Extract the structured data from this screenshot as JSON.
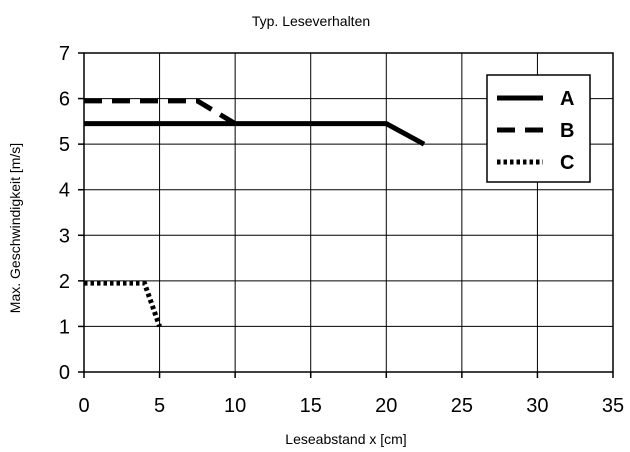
{
  "chart_data": {
    "type": "line",
    "title": "Typ. Leseverhalten",
    "xlabel": "Leseabstand x [cm]",
    "ylabel": "Max. Geschwindigkeit [m/s]",
    "xlim": [
      0,
      35
    ],
    "ylim": [
      0,
      7
    ],
    "xticks": [
      0,
      5,
      10,
      15,
      20,
      25,
      30,
      35
    ],
    "yticks": [
      0,
      1,
      2,
      3,
      4,
      5,
      6,
      7
    ],
    "grid": true,
    "legend_position": "top-right",
    "series": [
      {
        "name": "A",
        "style": "solid",
        "color": "#000000",
        "x": [
          0,
          20,
          22.5
        ],
        "y": [
          5.45,
          5.45,
          5.0
        ]
      },
      {
        "name": "B",
        "style": "dashed",
        "color": "#000000",
        "x": [
          0,
          7.5,
          10
        ],
        "y": [
          5.95,
          5.95,
          5.45
        ]
      },
      {
        "name": "C",
        "style": "dotted",
        "color": "#000000",
        "x": [
          0,
          4,
          5
        ],
        "y": [
          1.95,
          1.95,
          1.0
        ]
      }
    ]
  }
}
